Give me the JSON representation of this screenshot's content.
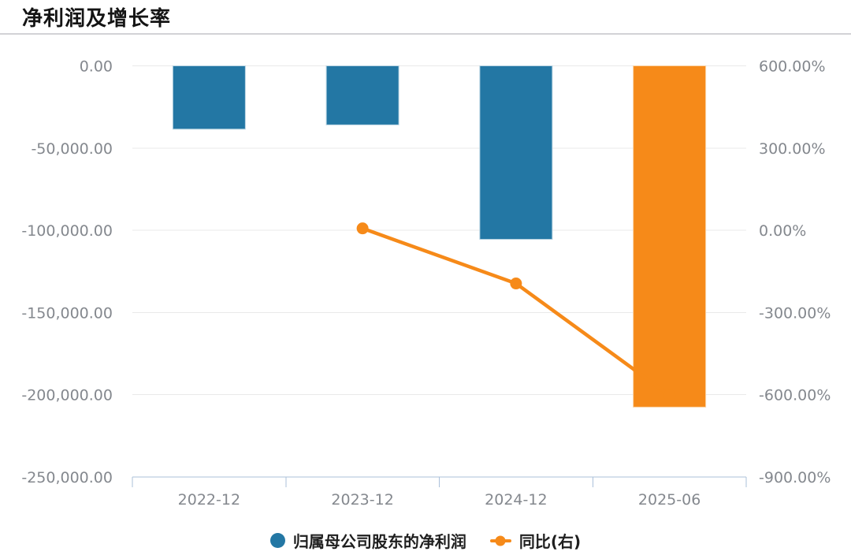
{
  "page": {
    "title": "净利润及增长率"
  },
  "legend": {
    "items": [
      {
        "label": "归属母公司股东的净利润",
        "color": "#2377a4",
        "marker": "circle"
      },
      {
        "label": "同比(右)",
        "color": "#f68a19",
        "marker": "line-dot"
      }
    ]
  },
  "colors": {
    "bar_blue": "#2377a4",
    "bar_orange": "#f68a19",
    "line_orange": "#f68a19",
    "gridline": "#e9e9e9",
    "axis_line": "#abc0da",
    "axis_label": "#84888e",
    "title_text": "#141414",
    "divider": "#d2d2d6"
  },
  "chart_data": {
    "type": "bar+line",
    "title": "净利润及增长率",
    "categories": [
      "2022-12",
      "2023-12",
      "2024-12",
      "2025-06"
    ],
    "series": [
      {
        "name": "归属母公司股东的净利润",
        "type": "bar",
        "axis": "left",
        "values": [
          -38500,
          -35900,
          -105500,
          -207500
        ],
        "bar_colors": [
          "#2377a4",
          "#2377a4",
          "#2377a4",
          "#f68a19"
        ],
        "bar_border_colors": [
          "#b9d4e2",
          "#b9d4e2",
          "#b9d4e2",
          "#fad3a6"
        ]
      },
      {
        "name": "同比(右)",
        "type": "line",
        "axis": "right",
        "values": [
          null,
          7,
          -194,
          -602
        ],
        "color": "#f68a19"
      }
    ],
    "left_axis": {
      "min": -250000,
      "max": 0,
      "tick_step": 50000,
      "tick_labels": [
        "0.00",
        "-50,000.00",
        "-100,000.00",
        "-150,000.00",
        "-200,000.00",
        "-250,000.00"
      ]
    },
    "right_axis": {
      "min": -900,
      "max": 600,
      "tick_step": 300,
      "tick_labels": [
        "600.00%",
        "300.00%",
        "0.00%",
        "-300.00%",
        "-600.00%",
        "-900.00%"
      ]
    },
    "grid": true,
    "legend_position": "bottom"
  }
}
